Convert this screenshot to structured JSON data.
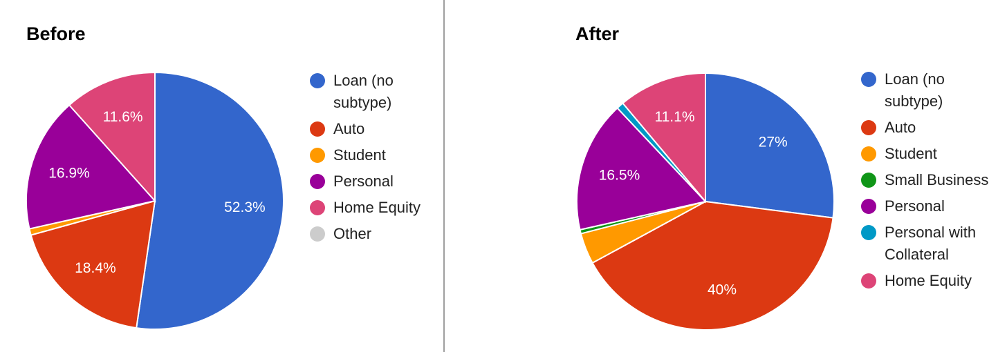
{
  "chart_data": [
    {
      "type": "pie",
      "title": "Before",
      "slices": [
        {
          "label": "Loan (no subtype)",
          "value": 52.3,
          "color": "#3366cc",
          "display": "52.3%"
        },
        {
          "label": "Auto",
          "value": 18.4,
          "color": "#dc3912",
          "display": "18.4%"
        },
        {
          "label": "Student",
          "value": 0.8,
          "color": "#ff9900",
          "display": ""
        },
        {
          "label": "Personal",
          "value": 16.9,
          "color": "#990099",
          "display": "16.9%"
        },
        {
          "label": "Home Equity",
          "value": 11.6,
          "color": "#dd4477",
          "display": "11.6%"
        },
        {
          "label": "Other",
          "value": 0,
          "color": "#cccccc",
          "display": ""
        }
      ],
      "legend_position": "right"
    },
    {
      "type": "pie",
      "title": "After",
      "slices": [
        {
          "label": "Loan (no subtype)",
          "value": 27,
          "color": "#3366cc",
          "display": "27%"
        },
        {
          "label": "Auto",
          "value": 40,
          "color": "#dc3912",
          "display": "40%"
        },
        {
          "label": "Student",
          "value": 3.9,
          "color": "#ff9900",
          "display": ""
        },
        {
          "label": "Small Business",
          "value": 0.5,
          "color": "#109618",
          "display": ""
        },
        {
          "label": "Personal",
          "value": 16.5,
          "color": "#990099",
          "display": "16.5%"
        },
        {
          "label": "Personal with Collateral",
          "value": 0.9,
          "color": "#0099c6",
          "display": ""
        },
        {
          "label": "Home Equity",
          "value": 11.1,
          "color": "#dd4477",
          "display": "11.1%"
        }
      ],
      "legend_position": "right"
    }
  ]
}
